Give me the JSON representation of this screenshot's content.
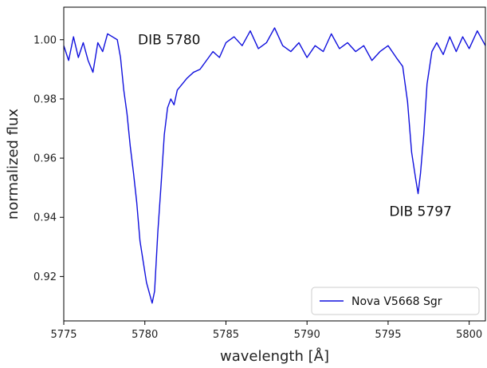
{
  "chart_data": {
    "type": "line",
    "xlabel": "wavelength [Å]",
    "ylabel": "normalized flux",
    "xlim": [
      5775,
      5801
    ],
    "ylim": [
      0.905,
      1.011
    ],
    "x_ticks": [
      5775,
      5780,
      5785,
      5790,
      5795,
      5800
    ],
    "y_ticks": [
      0.92,
      0.94,
      0.96,
      0.98,
      1.0
    ],
    "x_tick_labels": [
      "5775",
      "5780",
      "5785",
      "5790",
      "5795",
      "5800"
    ],
    "y_tick_labels": [
      "0.92",
      "0.94",
      "0.96",
      "0.98",
      "1.00"
    ],
    "grid": false,
    "legend_position": "bottom-right",
    "annotations": [
      {
        "text": "DIB 5780",
        "x": 5781.5,
        "y": 0.9985
      },
      {
        "text": "DIB 5797",
        "x": 5797.0,
        "y": 0.9405
      }
    ],
    "series": [
      {
        "name": "Nova V5668 Sgr",
        "color": "#1010dd",
        "x": [
          5775.0,
          5775.3,
          5775.6,
          5775.9,
          5776.2,
          5776.5,
          5776.8,
          5777.1,
          5777.4,
          5777.7,
          5778.0,
          5778.3,
          5778.5,
          5778.7,
          5778.9,
          5779.1,
          5779.3,
          5779.5,
          5779.7,
          5779.9,
          5780.1,
          5780.3,
          5780.45,
          5780.6,
          5780.8,
          5781.0,
          5781.2,
          5781.4,
          5781.6,
          5781.8,
          5782.0,
          5782.3,
          5782.6,
          5783.0,
          5783.4,
          5783.8,
          5784.2,
          5784.6,
          5785.0,
          5785.5,
          5786.0,
          5786.5,
          5787.0,
          5787.5,
          5788.0,
          5788.5,
          5789.0,
          5789.5,
          5790.0,
          5790.5,
          5791.0,
          5791.5,
          5792.0,
          5792.5,
          5793.0,
          5793.5,
          5794.0,
          5794.5,
          5795.0,
          5795.5,
          5795.9,
          5796.2,
          5796.45,
          5796.7,
          5796.85,
          5797.0,
          5797.2,
          5797.4,
          5797.7,
          5798.0,
          5798.4,
          5798.8,
          5799.2,
          5799.6,
          5800.0,
          5800.5,
          5801.0
        ],
        "y": [
          0.998,
          0.993,
          1.001,
          0.994,
          0.999,
          0.993,
          0.989,
          0.999,
          0.996,
          1.002,
          1.001,
          1.0,
          0.994,
          0.983,
          0.975,
          0.964,
          0.955,
          0.945,
          0.932,
          0.925,
          0.918,
          0.914,
          0.911,
          0.915,
          0.935,
          0.951,
          0.968,
          0.977,
          0.98,
          0.978,
          0.983,
          0.985,
          0.987,
          0.989,
          0.99,
          0.993,
          0.996,
          0.994,
          0.999,
          1.001,
          0.998,
          1.003,
          0.997,
          0.999,
          1.004,
          0.998,
          0.996,
          0.999,
          0.994,
          0.998,
          0.996,
          1.002,
          0.997,
          0.999,
          0.996,
          0.998,
          0.993,
          0.996,
          0.998,
          0.994,
          0.991,
          0.979,
          0.962,
          0.953,
          0.948,
          0.955,
          0.968,
          0.985,
          0.996,
          0.999,
          0.995,
          1.001,
          0.996,
          1.001,
          0.997,
          1.003,
          0.998
        ]
      }
    ]
  }
}
